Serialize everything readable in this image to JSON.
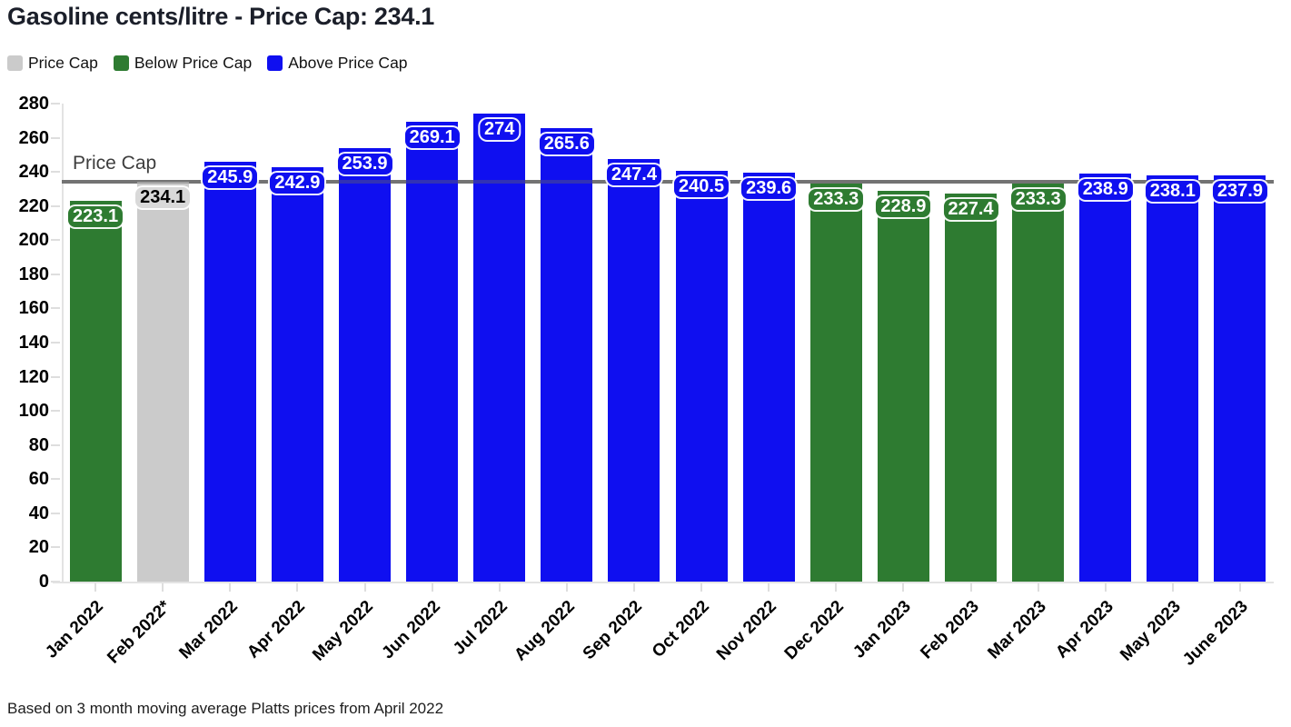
{
  "title": "Gasoline cents/litre - Price Cap: 234.1",
  "legend": {
    "items": [
      {
        "label": "Price Cap",
        "color": "#cbcbcb",
        "key": "cap"
      },
      {
        "label": "Below Price Cap",
        "color": "#2e7b31",
        "key": "below"
      },
      {
        "label": "Above Price Cap",
        "color": "#0f0ff0",
        "key": "above"
      }
    ]
  },
  "annotation": {
    "text": "Price Cap"
  },
  "footer": "Based on 3 month moving average Platts prices from April 2022",
  "chart_data": {
    "type": "bar",
    "title": "Gasoline cents/litre - Price Cap: 234.1",
    "categories": [
      "Jan 2022",
      "Feb 2022*",
      "Mar 2022",
      "Apr 2022",
      "May 2022",
      "Jun 2022",
      "Jul 2022",
      "Aug 2022",
      "Sep 2022",
      "Oct 2022",
      "Nov 2022",
      "Dec 2022",
      "Jan 2023",
      "Feb 2023",
      "Mar 2023",
      "Apr 2023",
      "May 2023",
      "June 2023"
    ],
    "values": [
      223.1,
      234.1,
      245.9,
      242.9,
      253.9,
      269.1,
      274,
      265.6,
      247.4,
      240.5,
      239.6,
      233.3,
      228.9,
      227.4,
      233.3,
      238.9,
      238.1,
      237.9
    ],
    "statuses": [
      "below",
      "cap",
      "above",
      "above",
      "above",
      "above",
      "above",
      "above",
      "above",
      "above",
      "above",
      "below",
      "below",
      "below",
      "below",
      "above",
      "above",
      "above"
    ],
    "status_colors": {
      "cap": "#cbcbcb",
      "below": "#2e7b31",
      "above": "#0f0ff0",
      "cap_label_bg": "#d9d9d9"
    },
    "price_cap_value": 234.1,
    "price_cap_line_label": "Price Cap",
    "price_cap_line_color": "#7f7f7f",
    "xlabel": "",
    "ylabel": "",
    "ylim": [
      0,
      280
    ],
    "ytick_step": 20,
    "grid": false,
    "legend_position": "top-left",
    "value_labels": true,
    "note": "Based on 3 month moving average Platts prices from April 2022"
  }
}
